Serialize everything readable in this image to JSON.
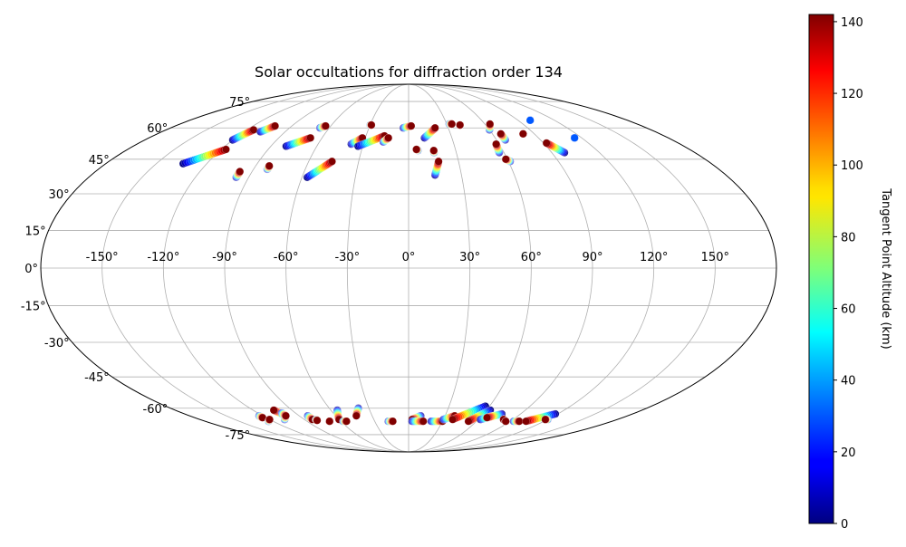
{
  "chart_data": {
    "type": "scatter",
    "projection": "mollweide",
    "title": "Solar occultations for diffraction order 134",
    "grid": true,
    "lon_ticks": [
      -150,
      -120,
      -90,
      -60,
      -30,
      0,
      30,
      60,
      90,
      120,
      150
    ],
    "lat_ticks": [
      -75,
      -60,
      -45,
      -30,
      -15,
      0,
      15,
      30,
      45,
      60,
      75
    ],
    "lon_tick_labels": [
      "-150°",
      "-120°",
      "-90°",
      "-60°",
      "-30°",
      "0°",
      "30°",
      "60°",
      "90°",
      "120°",
      "150°"
    ],
    "lat_tick_labels": [
      "-75°",
      "-60°",
      "-45°",
      "-30°",
      "-15°",
      "0°",
      "15°",
      "30°",
      "45°",
      "60°",
      "75°"
    ],
    "colorbar": {
      "label": "Tangent Point Altitude (km)",
      "colormap": "jet",
      "range": [
        0,
        142
      ],
      "ticks": [
        0,
        20,
        40,
        60,
        80,
        100,
        120,
        140
      ],
      "tick_labels": [
        "0",
        "20",
        "40",
        "60",
        "80",
        "100",
        "120",
        "140"
      ]
    },
    "series": [
      {
        "values": [
          [
            -134,
            43,
            0
          ],
          [
            -117,
            49.5,
            142
          ]
        ]
      },
      {
        "values": [
          [
            -120,
            54,
            0
          ],
          [
            -115,
            59,
            142
          ]
        ]
      },
      {
        "values": [
          [
            -108,
            58,
            0
          ],
          [
            -103,
            61,
            142
          ]
        ]
      },
      {
        "values": [
          [
            -97,
            37,
            0
          ],
          [
            -97,
            39.5,
            142
          ]
        ]
      },
      {
        "values": [
          [
            -82,
            40.5,
            0
          ],
          [
            -82,
            42,
            142
          ]
        ]
      },
      {
        "values": [
          [
            -80,
            51,
            0
          ],
          [
            -68,
            55,
            142
          ]
        ]
      },
      {
        "values": [
          [
            -67,
            60,
            0
          ],
          [
            -64,
            61,
            142
          ]
        ]
      },
      {
        "values": [
          [
            -57,
            37,
            0
          ],
          [
            -46,
            44,
            142
          ]
        ]
      },
      {
        "values": [
          [
            -38,
            52,
            0
          ],
          [
            -32,
            55,
            142
          ]
        ]
      },
      {
        "values": [
          [
            -33,
            51,
            0
          ],
          [
            -17,
            56,
            142
          ]
        ]
      },
      {
        "values": [
          [
            -30,
            61.5,
            0
          ],
          [
            -29,
            61.5,
            142
          ]
        ]
      },
      {
        "values": [
          [
            -17,
            53,
            0
          ],
          [
            -14,
            55,
            142
          ]
        ]
      },
      {
        "values": [
          [
            -4,
            60,
            0
          ],
          [
            2,
            61,
            142
          ]
        ]
      },
      {
        "values": [
          [
            6,
            49,
            0
          ],
          [
            5,
            49.5,
            142
          ]
        ]
      },
      {
        "values": [
          [
            11,
            55,
            0
          ],
          [
            20,
            60,
            142
          ]
        ]
      },
      {
        "values": [
          [
            15,
            38,
            0
          ],
          [
            18,
            44,
            142
          ]
        ]
      },
      {
        "values": [
          [
            16,
            48,
            0
          ],
          [
            16,
            49,
            142
          ]
        ]
      },
      {
        "values": [
          [
            32,
            62,
            0
          ],
          [
            34,
            62,
            142
          ]
        ]
      },
      {
        "values": [
          [
            40,
            61.5,
            0
          ],
          [
            40,
            61.5,
            142
          ]
        ]
      },
      {
        "values": [
          [
            57,
            48,
            0
          ],
          [
            58,
            52,
            142
          ]
        ]
      },
      {
        "values": [
          [
            60,
            59,
            0
          ],
          [
            64,
            62,
            142
          ]
        ]
      },
      {
        "values": [
          [
            61,
            44,
            0
          ],
          [
            59,
            45,
            142
          ]
        ]
      },
      {
        "values": [
          [
            66,
            54,
            0
          ],
          [
            66,
            57,
            142
          ]
        ]
      },
      {
        "values": [
          [
            82,
            57,
            0
          ],
          [
            82,
            57,
            142
          ]
        ]
      },
      {
        "values": [
          [
            98,
            48,
            0
          ],
          [
            92,
            52.5,
            142
          ]
        ]
      },
      {
        "values": [
          [
            100,
            64,
            0
          ],
          [
            100,
            64,
            30
          ]
        ]
      },
      {
        "values": [
          [
            115,
            55,
            0
          ],
          [
            115,
            55,
            30
          ]
        ]
      },
      {
        "values": [
          [
            -123,
            -64,
            0
          ],
          [
            -123,
            -65,
            142
          ]
        ]
      },
      {
        "values": [
          [
            -124,
            -67,
            0
          ],
          [
            -120,
            -66,
            142
          ]
        ]
      },
      {
        "values": [
          [
            -107,
            -66,
            0
          ],
          [
            -101,
            -64,
            142
          ]
        ]
      },
      {
        "values": [
          [
            -101,
            -64,
            0
          ],
          [
            -104,
            -61,
            142
          ]
        ]
      },
      {
        "values": [
          [
            -101,
            -62.5,
            0
          ],
          [
            -101,
            -64,
            142
          ]
        ]
      },
      {
        "values": [
          [
            -83,
            -64,
            0
          ],
          [
            -83,
            -66,
            142
          ]
        ]
      },
      {
        "values": [
          [
            -80,
            -66,
            0
          ],
          [
            -80,
            -66.5,
            142
          ]
        ]
      },
      {
        "values": [
          [
            -70,
            -67,
            0
          ],
          [
            -70,
            -67,
            142
          ]
        ]
      },
      {
        "values": [
          [
            -55,
            -61,
            0
          ],
          [
            -60,
            -66,
            142
          ]
        ]
      },
      {
        "values": [
          [
            -58,
            -67,
            0
          ],
          [
            -55,
            -67,
            142
          ]
        ]
      },
      {
        "values": [
          [
            -38,
            -60,
            0
          ],
          [
            -43,
            -64,
            142
          ]
        ]
      },
      {
        "values": [
          [
            -18,
            -67,
            0
          ],
          [
            -14,
            -67,
            142
          ]
        ]
      },
      {
        "values": [
          [
            10,
            -64,
            0
          ],
          [
            3,
            -66,
            142
          ]
        ]
      },
      {
        "values": [
          [
            3,
            -67,
            0
          ],
          [
            13,
            -67,
            142
          ]
        ]
      },
      {
        "values": [
          [
            20,
            -67,
            0
          ],
          [
            30,
            -67,
            142
          ]
        ]
      },
      {
        "values": [
          [
            30,
            -66,
            0
          ],
          [
            38,
            -64,
            142
          ]
        ]
      },
      {
        "values": [
          [
            57,
            -59,
            0
          ],
          [
            38,
            -66,
            142
          ]
        ]
      },
      {
        "values": [
          [
            63,
            -61,
            0
          ],
          [
            53,
            -67,
            142
          ]
        ]
      },
      {
        "values": [
          [
            62,
            -66,
            0
          ],
          [
            70,
            -64,
            142
          ]
        ]
      },
      {
        "values": [
          [
            75,
            -63,
            0
          ],
          [
            66,
            -65,
            142
          ]
        ]
      },
      {
        "values": [
          [
            82,
            -66,
            0
          ],
          [
            82,
            -66,
            142
          ]
        ]
      },
      {
        "values": [
          [
            86,
            -67,
            0
          ],
          [
            86,
            -67,
            142
          ]
        ]
      },
      {
        "values": [
          [
            93,
            -67,
            0
          ],
          [
            98,
            -67,
            142
          ]
        ]
      },
      {
        "values": [
          [
            118,
            -63,
            0
          ],
          [
            104,
            -67,
            142
          ]
        ]
      },
      {
        "values": [
          [
            120,
            -66,
            0
          ],
          [
            118,
            -66,
            142
          ]
        ]
      }
    ]
  }
}
